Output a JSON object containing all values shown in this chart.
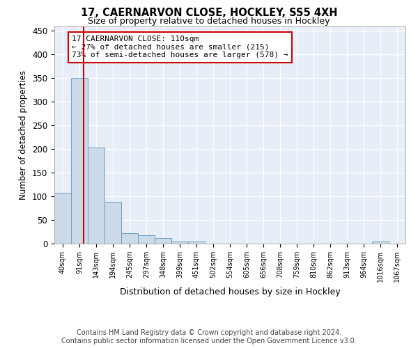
{
  "title": "17, CAERNARVON CLOSE, HOCKLEY, SS5 4XH",
  "subtitle": "Size of property relative to detached houses in Hockley",
  "xlabel": "Distribution of detached houses by size in Hockley",
  "ylabel": "Number of detached properties",
  "bin_labels": [
    "40sqm",
    "91sqm",
    "143sqm",
    "194sqm",
    "245sqm",
    "297sqm",
    "348sqm",
    "399sqm",
    "451sqm",
    "502sqm",
    "554sqm",
    "605sqm",
    "656sqm",
    "708sqm",
    "759sqm",
    "810sqm",
    "862sqm",
    "913sqm",
    "964sqm",
    "1016sqm",
    "1067sqm"
  ],
  "bar_heights": [
    107,
    350,
    203,
    88,
    22,
    17,
    12,
    5,
    4,
    0,
    0,
    0,
    0,
    0,
    0,
    0,
    0,
    0,
    0,
    5,
    0
  ],
  "bar_color": "#ccdaea",
  "bar_edge_color": "#6a9fc8",
  "annotation_text": "17 CAERNARVON CLOSE: 110sqm\n← 27% of detached houses are smaller (215)\n73% of semi-detached houses are larger (578) →",
  "annotation_box_edge": "#cc0000",
  "vline_color": "#cc0000",
  "vline_x_data": 1.25,
  "ylim": [
    0,
    460
  ],
  "yticks": [
    0,
    50,
    100,
    150,
    200,
    250,
    300,
    350,
    400,
    450
  ],
  "footnote": "Contains HM Land Registry data © Crown copyright and database right 2024.\nContains public sector information licensed under the Open Government Licence v3.0.",
  "background_color": "#ffffff",
  "plot_bg_color": "#e8eef8"
}
